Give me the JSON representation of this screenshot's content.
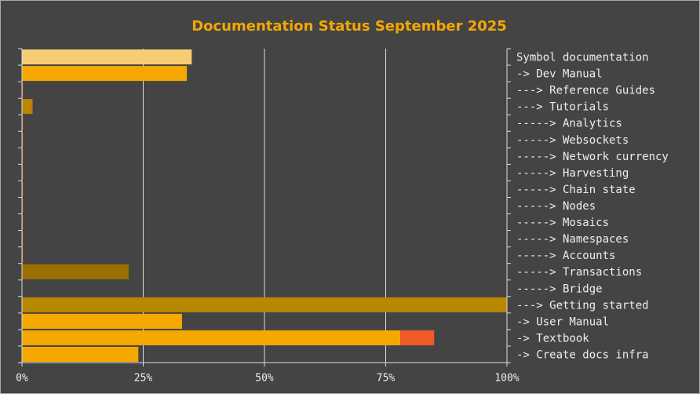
{
  "chart_data": {
    "type": "hbar-stacked",
    "title": "Documentation Status September 2025",
    "categories": [
      "Symbol documentation",
      "-> Dev Manual",
      "---> Reference Guides",
      "---> Tutorials",
      "-----> Analytics",
      "-----> Websockets",
      "-----> Network currency",
      "-----> Harvesting",
      "-----> Chain state",
      "-----> Nodes",
      "-----> Mosaics",
      "-----> Namespaces",
      "-----> Accounts",
      "-----> Transactions",
      "-----> Bridge",
      "---> Getting started",
      "-> User Manual",
      "-> Textbook",
      "-> Create docs infra"
    ],
    "series": [
      {
        "colors": [
          "#f8cd74",
          "#f5a800",
          "#b88800",
          "#b88800",
          "#9a7000",
          "#9a7000",
          "#9a7000",
          "#9a7000",
          "#9a7000",
          "#9a7000",
          "#9a7000",
          "#9a7000",
          "#9a7000",
          "#9a7000",
          "#9a7000",
          "#b88800",
          "#f5a800",
          "#f5a800",
          "#f5a800"
        ],
        "values": [
          35,
          34,
          0,
          2,
          0,
          0,
          0,
          0,
          0,
          0,
          0,
          0,
          0,
          22,
          0,
          100,
          33,
          78,
          24
        ]
      },
      {
        "color": "#f05a28",
        "values": [
          null,
          null,
          0,
          0,
          0,
          0,
          0,
          0,
          0,
          0,
          0,
          0,
          0,
          null,
          null,
          null,
          null,
          7,
          null
        ]
      }
    ],
    "xlim": [
      0,
      100
    ],
    "xticks": [
      {
        "value": 0,
        "label": "0%"
      },
      {
        "value": 25,
        "label": "25%"
      },
      {
        "value": 50,
        "label": "50%"
      },
      {
        "value": 75,
        "label": "75%"
      },
      {
        "value": 100,
        "label": "100%"
      }
    ],
    "grid": true
  }
}
